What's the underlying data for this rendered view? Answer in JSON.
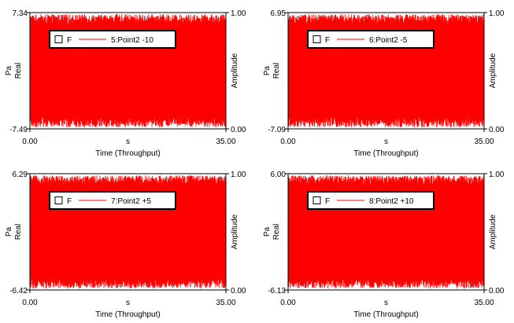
{
  "chart_data": [
    {
      "type": "line",
      "series": [
        {
          "name": "5:Point2 -10",
          "color": "#ff0000"
        }
      ],
      "legend": {
        "checkbox_label": "F",
        "series_label": "5:Point2 -10",
        "checked": false
      },
      "left_axis": {
        "unit": "Pa",
        "label": "Real",
        "ylim": [
          -7.49,
          7.34
        ],
        "tick_labels": [
          "7.34",
          "-7.49"
        ]
      },
      "right_axis": {
        "label": "Amplitude",
        "ylim": [
          0.0,
          1.0
        ],
        "tick_labels": [
          "1.00",
          "0.00"
        ]
      },
      "x_axis": {
        "unit": "s",
        "label": "Time (Throughput)",
        "xlim": [
          0.0,
          35.0
        ],
        "tick_labels": [
          "0.00",
          "35.00"
        ]
      },
      "grid": false,
      "legend_position": "upper-left"
    },
    {
      "type": "line",
      "series": [
        {
          "name": "6:Point2 -5",
          "color": "#ff0000"
        }
      ],
      "legend": {
        "checkbox_label": "F",
        "series_label": "6:Point2 -5",
        "checked": false
      },
      "left_axis": {
        "unit": "Pa",
        "label": "Real",
        "ylim": [
          -7.09,
          6.95
        ],
        "tick_labels": [
          "6.95",
          "-7.09"
        ]
      },
      "right_axis": {
        "label": "Amplitude",
        "ylim": [
          0.0,
          1.0
        ],
        "tick_labels": [
          "1.00",
          "0.00"
        ]
      },
      "x_axis": {
        "unit": "s",
        "label": "Time (Throughput)",
        "xlim": [
          0.0,
          35.0
        ],
        "tick_labels": [
          "0.00",
          "35.00"
        ]
      },
      "grid": false,
      "legend_position": "upper-left"
    },
    {
      "type": "line",
      "series": [
        {
          "name": "7:Point2 +5",
          "color": "#ff0000"
        }
      ],
      "legend": {
        "checkbox_label": "F",
        "series_label": "7:Point2 +5",
        "checked": false
      },
      "left_axis": {
        "unit": "Pa",
        "label": "Real",
        "ylim": [
          -6.42,
          6.29
        ],
        "tick_labels": [
          "6.29",
          "-6.42"
        ]
      },
      "right_axis": {
        "label": "Amplitude",
        "ylim": [
          0.0,
          1.0
        ],
        "tick_labels": [
          "1.00",
          "0.00"
        ]
      },
      "x_axis": {
        "unit": "s",
        "label": "Time (Throughput)",
        "xlim": [
          0.0,
          35.0
        ],
        "tick_labels": [
          "0.00",
          "35.00"
        ]
      },
      "grid": false,
      "legend_position": "upper-left"
    },
    {
      "type": "line",
      "series": [
        {
          "name": "8:Point2 +10",
          "color": "#ff0000"
        }
      ],
      "legend": {
        "checkbox_label": "F",
        "series_label": "8:Point2 +10",
        "checked": false
      },
      "left_axis": {
        "unit": "Pa",
        "label": "Real",
        "ylim": [
          -6.13,
          6.0
        ],
        "tick_labels": [
          "6.00",
          "-6.13"
        ]
      },
      "right_axis": {
        "label": "Amplitude",
        "ylim": [
          0.0,
          1.0
        ],
        "tick_labels": [
          "1.00",
          "0.00"
        ]
      },
      "x_axis": {
        "unit": "s",
        "label": "Time (Throughput)",
        "xlim": [
          0.0,
          35.0
        ],
        "tick_labels": [
          "0.00",
          "35.00"
        ]
      },
      "grid": false,
      "legend_position": "upper-left"
    }
  ]
}
